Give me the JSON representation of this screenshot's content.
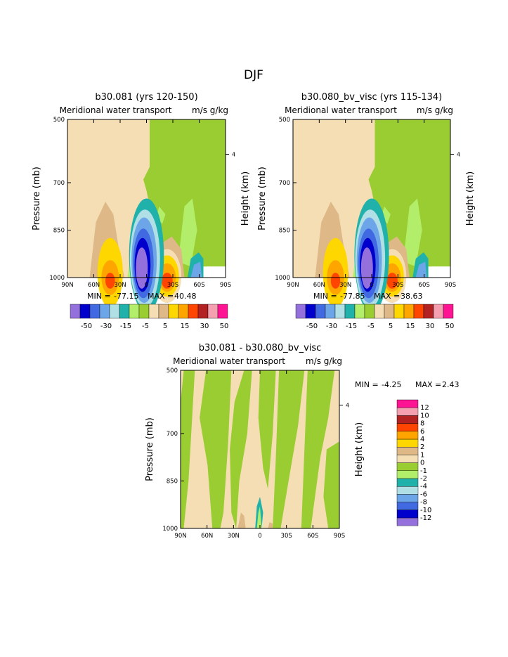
{
  "page": {
    "title": "DJF"
  },
  "chart_data": [
    {
      "type": "heatmap",
      "title": "b30.081 (yrs 120-150)",
      "subtitle": "Meridional water transport",
      "units": "m/s g/kg",
      "ylabel": "Pressure (mb)",
      "ylabel_right": "Height (km)",
      "right_ticks": [
        "4"
      ],
      "xticks": [
        "90N",
        "60N",
        "30N",
        "0",
        "30S",
        "60S",
        "90S"
      ],
      "yticks": [
        "500",
        "700",
        "850",
        "1000"
      ],
      "min_label": "MIN = ",
      "min_value": "-77.15",
      "max_label": "MAX = ",
      "max_value": "40.48"
    },
    {
      "type": "heatmap",
      "title": "b30.080_bv_visc (yrs 115-134)",
      "subtitle": "Meridional water transport",
      "units": "m/s g/kg",
      "ylabel": "Pressure (mb)",
      "ylabel_right": "Height (km)",
      "right_ticks": [
        "4"
      ],
      "xticks": [
        "90N",
        "60N",
        "30N",
        "0",
        "30S",
        "60S",
        "90S"
      ],
      "yticks": [
        "500",
        "700",
        "850",
        "1000"
      ],
      "min_label": "MIN = ",
      "min_value": "-77.85",
      "max_label": "MAX = ",
      "max_value": "38.63"
    },
    {
      "type": "heatmap",
      "title": "b30.081 - b30.080_bv_visc",
      "subtitle": "Meridional water transport",
      "units": "m/s g/kg",
      "ylabel": "Pressure (mb)",
      "ylabel_right": "Height (km)",
      "right_ticks": [
        "4"
      ],
      "xticks": [
        "90N",
        "60N",
        "30N",
        "0",
        "30S",
        "60S",
        "90S"
      ],
      "yticks": [
        "500",
        "700",
        "850",
        "1000"
      ],
      "min_label": "MIN = ",
      "min_value": "-4.25",
      "max_label": "MAX = ",
      "max_value": "2.43"
    }
  ],
  "legend_top": {
    "colors": [
      "#9370DB",
      "#0000CD",
      "#4169E1",
      "#6CA6E8",
      "#B0E0E6",
      "#20B2AA",
      "#B3EE6A",
      "#9ACD32",
      "#F5DEB3",
      "#DEB887",
      "#FFD700",
      "#FFA500",
      "#FF4500",
      "#B22222",
      "#F4A0B0",
      "#FF1493"
    ],
    "labels": [
      "-50",
      "-30",
      "-15",
      "-5",
      "5",
      "15",
      "30",
      "50"
    ],
    "label_slots": [
      2,
      4,
      6,
      8,
      10,
      12,
      14,
      16
    ]
  },
  "legend_diff": {
    "colors": [
      "#9370DB",
      "#0000CD",
      "#4169E1",
      "#6CA6E8",
      "#B0E0E6",
      "#20B2AA",
      "#B3EE6A",
      "#9ACD32",
      "#F5DEB3",
      "#DEB887",
      "#FFD700",
      "#FFA500",
      "#FF4500",
      "#B22222",
      "#F4A0B0",
      "#FF1493"
    ],
    "labels": [
      "-12",
      "-10",
      "-8",
      "-6",
      "-4",
      "-2",
      "-1",
      "0",
      "1",
      "2",
      "4",
      "6",
      "8",
      "10",
      "12"
    ]
  }
}
